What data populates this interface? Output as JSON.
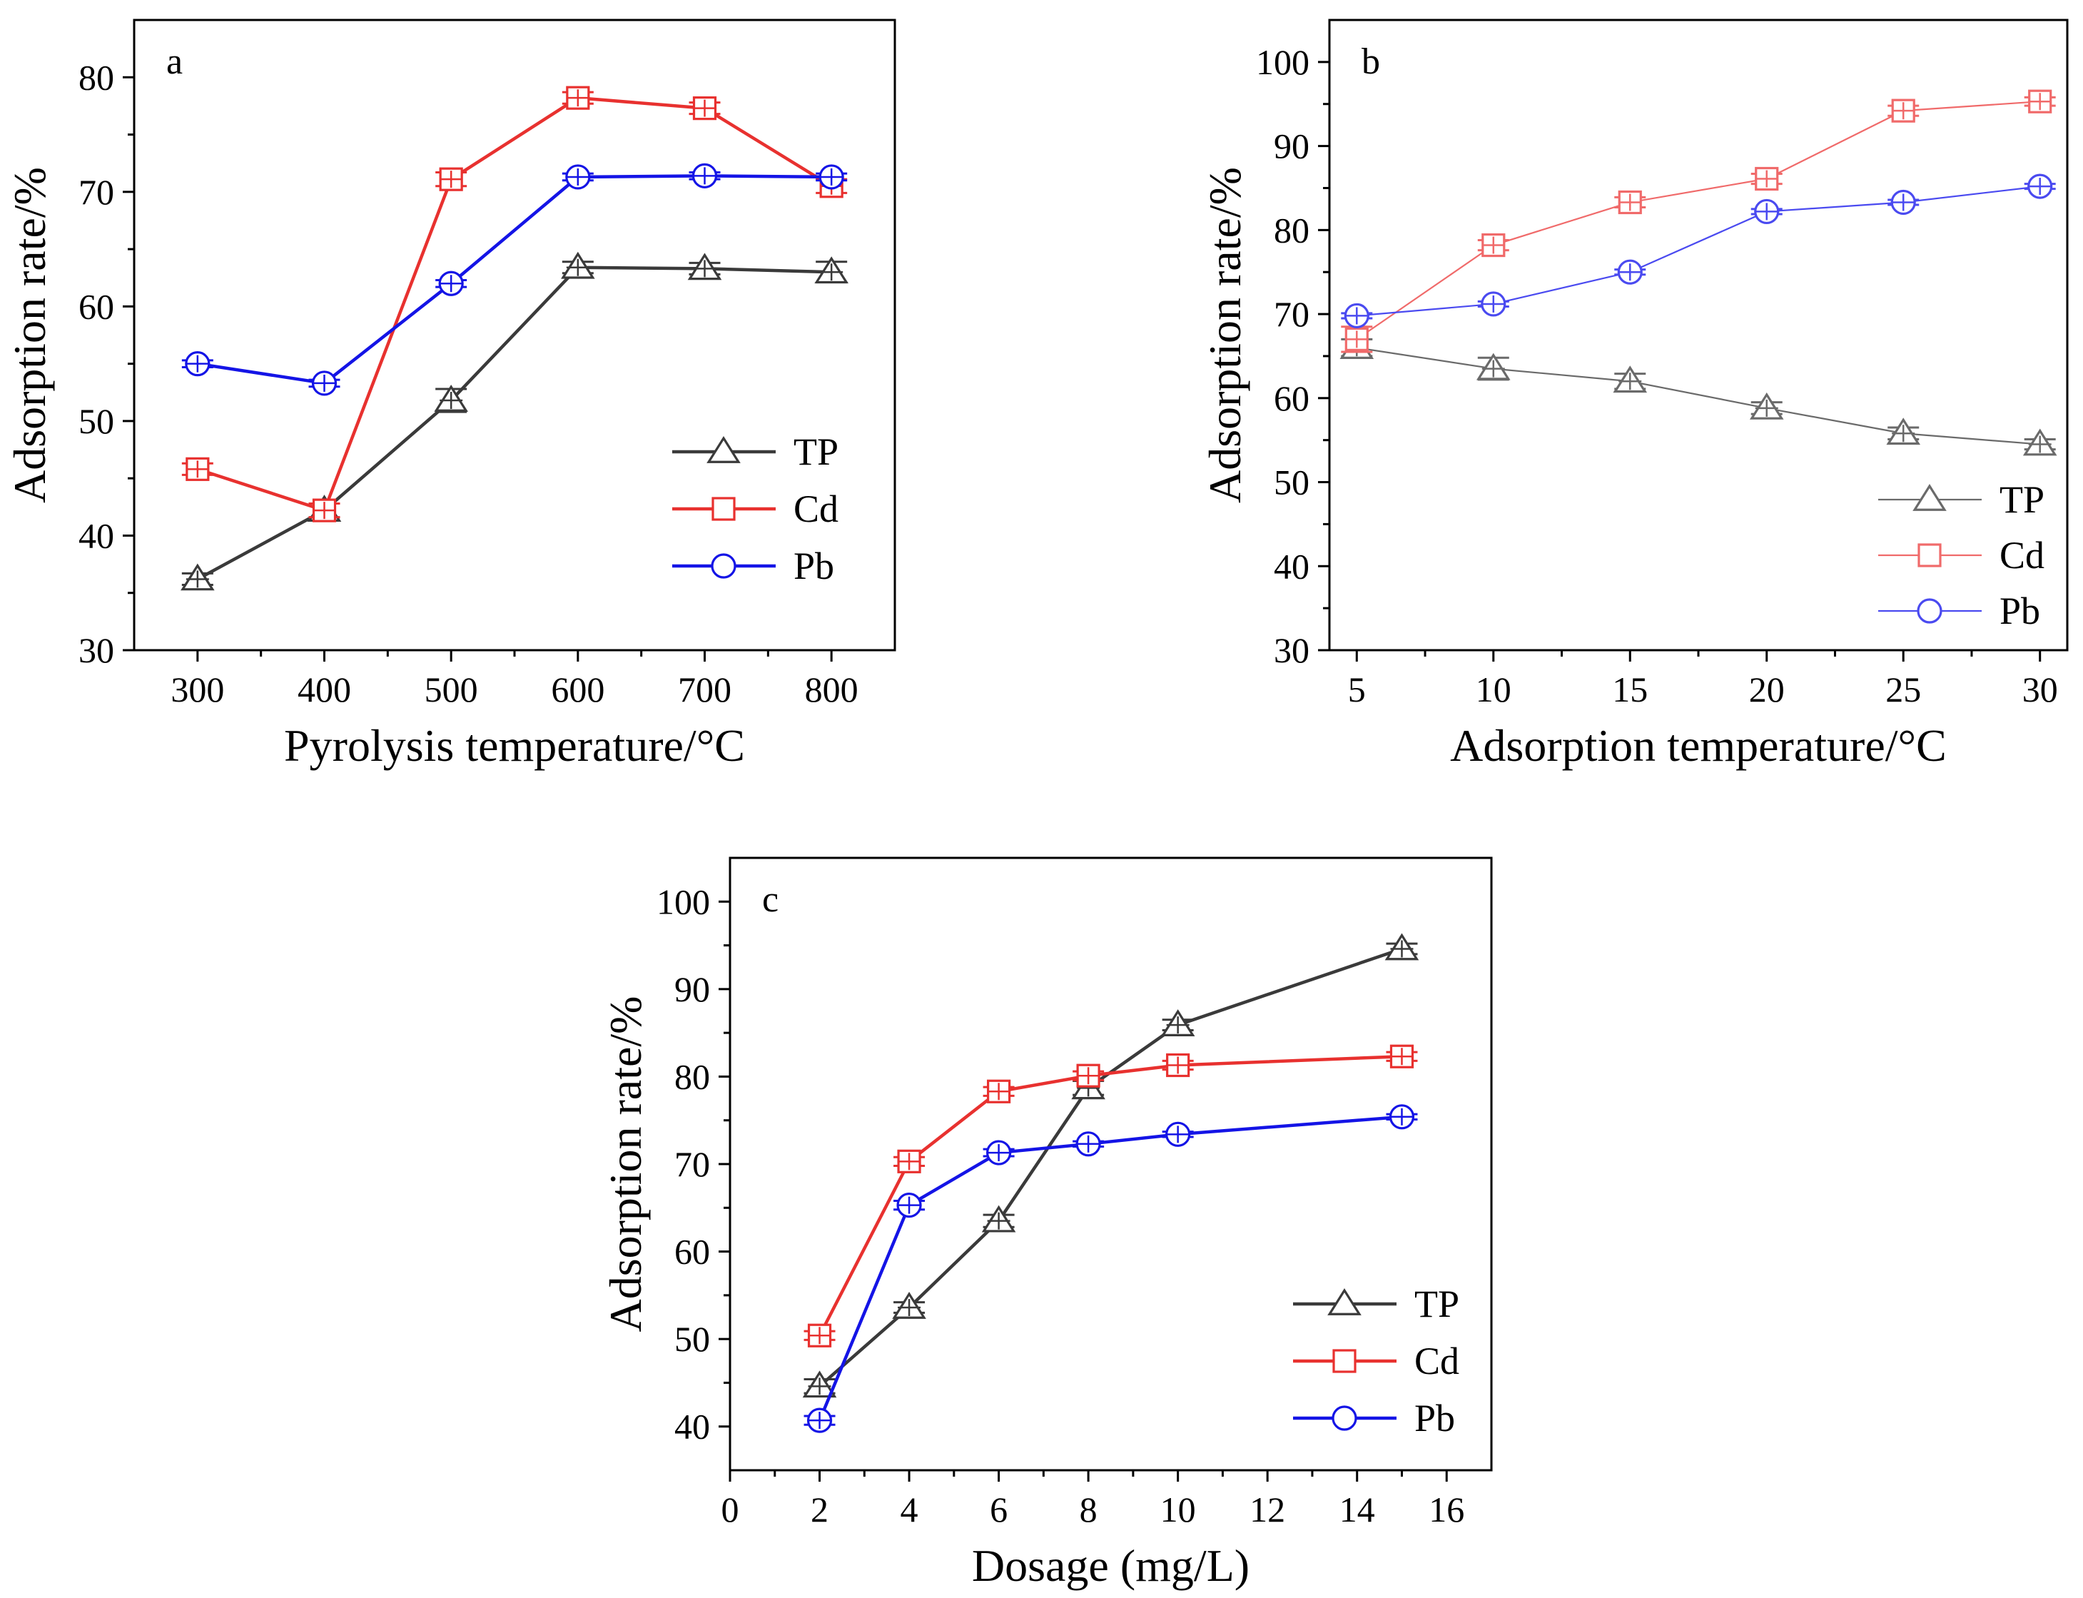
{
  "chart_data": [
    {
      "type": "line",
      "panel_label": "a",
      "xlabel": "Pyrolysis temperature/°C",
      "ylabel": "Adsorption rate/%",
      "xlim": [
        250,
        850
      ],
      "ylim": [
        30,
        85
      ],
      "xticks": [
        300,
        400,
        500,
        600,
        700,
        800
      ],
      "yticks": [
        30,
        40,
        50,
        60,
        70,
        80
      ],
      "x": [
        300,
        400,
        500,
        600,
        700,
        800
      ],
      "legend_position": "lower-right",
      "series": [
        {
          "name": "TP",
          "marker": "triangle",
          "color": "#3a3a3a",
          "values": [
            36.2,
            42.2,
            51.8,
            63.4,
            63.3,
            63.0
          ],
          "err": [
            0.5,
            0.6,
            1.0,
            0.5,
            0.5,
            0.9
          ]
        },
        {
          "name": "Cd",
          "marker": "square",
          "color": "#e8312f",
          "values": [
            45.8,
            42.2,
            71.1,
            78.2,
            77.3,
            70.5
          ],
          "err": [
            0.5,
            0.6,
            0.6,
            0.5,
            0.5,
            0.6
          ]
        },
        {
          "name": "Pb",
          "marker": "circle",
          "color": "#1414e6",
          "values": [
            55.0,
            53.3,
            62.0,
            71.3,
            71.4,
            71.3
          ],
          "err": [
            0.3,
            0.3,
            0.3,
            0.3,
            0.3,
            0.3
          ]
        }
      ]
    },
    {
      "type": "line",
      "panel_label": "b",
      "xlabel": "Adsorption temperature/°C",
      "ylabel": "Adsorption rate/%",
      "xlim": [
        4,
        31
      ],
      "ylim": [
        30,
        105
      ],
      "xticks": [
        5,
        10,
        15,
        20,
        25,
        30
      ],
      "yticks": [
        30,
        40,
        50,
        60,
        70,
        80,
        90,
        100
      ],
      "x": [
        5,
        10,
        15,
        20,
        25,
        30
      ],
      "legend_position": "lower-right",
      "series": [
        {
          "name": "TP",
          "marker": "triangle",
          "color": "#6a6a6a",
          "values": [
            66.0,
            63.5,
            62.0,
            58.8,
            55.8,
            54.5
          ],
          "err": [
            1.0,
            1.3,
            0.9,
            0.7,
            0.7,
            0.6
          ]
        },
        {
          "name": "Cd",
          "marker": "square",
          "color": "#f06a6a",
          "values": [
            67.0,
            78.2,
            83.3,
            86.1,
            94.2,
            95.3
          ],
          "err": [
            1.5,
            0.6,
            0.6,
            0.6,
            0.6,
            0.5
          ]
        },
        {
          "name": "Pb",
          "marker": "circle",
          "color": "#4a4af0",
          "values": [
            69.8,
            71.2,
            75.0,
            82.2,
            83.3,
            85.2
          ],
          "err": [
            0.3,
            0.3,
            0.3,
            0.3,
            0.3,
            0.3
          ]
        }
      ]
    },
    {
      "type": "line",
      "panel_label": "c",
      "xlabel": "Dosage (mg/L)",
      "ylabel": "Adsorption rate/%",
      "xlim": [
        0,
        17
      ],
      "ylim": [
        35,
        105
      ],
      "xticks": [
        0,
        2,
        4,
        6,
        8,
        10,
        12,
        14,
        16
      ],
      "yticks": [
        40,
        50,
        60,
        70,
        80,
        90,
        100
      ],
      "x": [
        2,
        4,
        6,
        8,
        10,
        15
      ],
      "legend_position": "lower-right",
      "series": [
        {
          "name": "TP",
          "marker": "triangle",
          "color": "#3a3a3a",
          "values": [
            44.6,
            53.6,
            63.5,
            78.7,
            85.9,
            94.6
          ],
          "err": [
            0.8,
            0.6,
            0.7,
            0.8,
            0.6,
            0.6
          ]
        },
        {
          "name": "Cd",
          "marker": "square",
          "color": "#e8312f",
          "values": [
            50.4,
            70.3,
            78.3,
            80.1,
            81.3,
            82.3
          ],
          "err": [
            0.5,
            0.5,
            0.5,
            0.5,
            0.5,
            0.5
          ]
        },
        {
          "name": "Pb",
          "marker": "circle",
          "color": "#1414e6",
          "values": [
            40.7,
            65.3,
            71.3,
            72.3,
            73.4,
            75.4
          ],
          "err": [
            0.5,
            0.5,
            0.4,
            0.3,
            0.3,
            0.3
          ]
        }
      ]
    }
  ]
}
